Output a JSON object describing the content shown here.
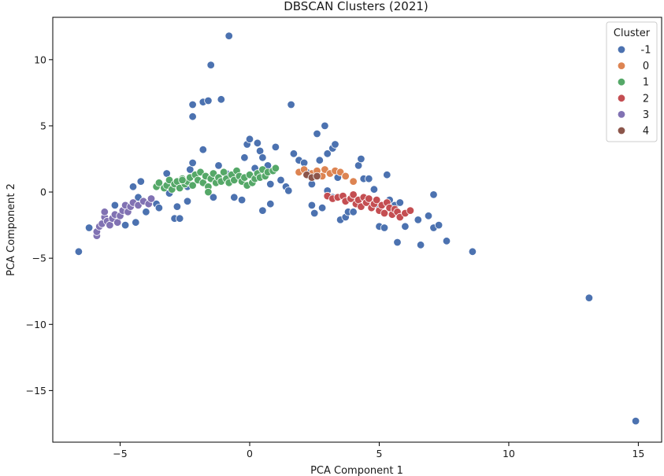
{
  "chart_data": {
    "type": "scatter",
    "title": "DBSCAN Clusters (2021)",
    "xlabel": "PCA Component 1",
    "ylabel": "PCA Component 2",
    "xlim": [
      -7.6,
      15.9
    ],
    "ylim": [
      -18.9,
      13.2
    ],
    "xticks": [
      -5,
      0,
      5,
      10,
      15
    ],
    "yticks": [
      -15,
      -10,
      -5,
      0,
      5,
      10
    ],
    "grid": false,
    "legend": {
      "title": "Cluster",
      "position": "top-right"
    },
    "series": [
      {
        "name": "-1",
        "color": "#4c72b0",
        "points": [
          [
            -6.6,
            -4.5
          ],
          [
            -6.2,
            -2.7
          ],
          [
            -5.2,
            -1.0
          ],
          [
            -4.8,
            -2.5
          ],
          [
            -4.4,
            -2.3
          ],
          [
            -4.5,
            0.4
          ],
          [
            -4.2,
            0.8
          ],
          [
            -4.3,
            -0.4
          ],
          [
            -4.0,
            -1.5
          ],
          [
            -3.6,
            -0.9
          ],
          [
            -3.5,
            -1.2
          ],
          [
            -3.2,
            1.4
          ],
          [
            -3.1,
            -0.1
          ],
          [
            -2.9,
            -2.0
          ],
          [
            -2.7,
            -2.0
          ],
          [
            -2.8,
            -1.1
          ],
          [
            -2.4,
            -0.7
          ],
          [
            -2.4,
            0.4
          ],
          [
            -2.3,
            1.7
          ],
          [
            -2.2,
            2.2
          ],
          [
            -2.2,
            5.7
          ],
          [
            -2.2,
            6.6
          ],
          [
            -1.8,
            6.8
          ],
          [
            -1.6,
            6.9
          ],
          [
            -1.5,
            9.6
          ],
          [
            -1.1,
            7.0
          ],
          [
            -0.8,
            11.8
          ],
          [
            -1.8,
            3.2
          ],
          [
            -1.6,
            0.4
          ],
          [
            -1.4,
            -0.4
          ],
          [
            -1.2,
            2.0
          ],
          [
            -0.9,
            1.4
          ],
          [
            -0.6,
            -0.4
          ],
          [
            -0.3,
            -0.6
          ],
          [
            -0.2,
            2.6
          ],
          [
            -0.1,
            3.6
          ],
          [
            0.0,
            4.0
          ],
          [
            0.2,
            1.8
          ],
          [
            0.3,
            3.7
          ],
          [
            0.4,
            3.1
          ],
          [
            0.5,
            2.6
          ],
          [
            0.7,
            2.0
          ],
          [
            0.8,
            0.6
          ],
          [
            1.0,
            3.4
          ],
          [
            0.5,
            -1.4
          ],
          [
            0.8,
            -0.9
          ],
          [
            1.2,
            0.9
          ],
          [
            1.4,
            0.4
          ],
          [
            1.5,
            0.1
          ],
          [
            1.6,
            6.6
          ],
          [
            1.7,
            2.9
          ],
          [
            1.9,
            2.4
          ],
          [
            2.1,
            2.2
          ],
          [
            2.2,
            1.5
          ],
          [
            2.4,
            0.6
          ],
          [
            2.6,
            4.4
          ],
          [
            2.7,
            2.4
          ],
          [
            2.9,
            5.0
          ],
          [
            3.0,
            2.9
          ],
          [
            3.2,
            3.3
          ],
          [
            3.3,
            3.6
          ],
          [
            2.4,
            -1.0
          ],
          [
            2.5,
            -1.6
          ],
          [
            2.8,
            -1.2
          ],
          [
            3.0,
            0.1
          ],
          [
            3.2,
            -0.4
          ],
          [
            3.4,
            1.1
          ],
          [
            3.5,
            -2.1
          ],
          [
            3.7,
            -1.9
          ],
          [
            3.8,
            -1.5
          ],
          [
            4.0,
            -1.5
          ],
          [
            4.2,
            2.0
          ],
          [
            4.3,
            2.5
          ],
          [
            4.4,
            1.0
          ],
          [
            4.6,
            1.0
          ],
          [
            4.8,
            0.2
          ],
          [
            5.0,
            -1.2
          ],
          [
            5.0,
            -2.6
          ],
          [
            5.2,
            -2.7
          ],
          [
            5.3,
            1.3
          ],
          [
            5.4,
            -0.6
          ],
          [
            5.6,
            -1.0
          ],
          [
            5.8,
            -0.8
          ],
          [
            5.7,
            -3.8
          ],
          [
            6.0,
            -2.6
          ],
          [
            6.2,
            -1.4
          ],
          [
            6.5,
            -2.1
          ],
          [
            6.6,
            -4.0
          ],
          [
            6.9,
            -1.8
          ],
          [
            7.1,
            -2.7
          ],
          [
            7.3,
            -2.5
          ],
          [
            7.6,
            -3.7
          ],
          [
            7.1,
            -0.2
          ],
          [
            8.6,
            -4.5
          ],
          [
            13.1,
            -8.0
          ],
          [
            14.9,
            -17.3
          ]
        ]
      },
      {
        "name": "0",
        "color": "#dd8452",
        "points": [
          [
            1.9,
            1.5
          ],
          [
            2.1,
            1.7
          ],
          [
            2.4,
            1.4
          ],
          [
            2.6,
            1.6
          ],
          [
            2.8,
            1.2
          ],
          [
            2.9,
            1.7
          ],
          [
            3.1,
            1.4
          ],
          [
            3.3,
            1.6
          ],
          [
            3.5,
            1.5
          ],
          [
            3.7,
            1.2
          ],
          [
            4.0,
            0.8
          ]
        ]
      },
      {
        "name": "1",
        "color": "#55a868",
        "points": [
          [
            -3.6,
            0.4
          ],
          [
            -3.5,
            0.7
          ],
          [
            -3.3,
            0.3
          ],
          [
            -3.2,
            0.5
          ],
          [
            -3.1,
            0.9
          ],
          [
            -3.0,
            0.2
          ],
          [
            -2.9,
            0.6
          ],
          [
            -2.8,
            0.8
          ],
          [
            -2.7,
            0.3
          ],
          [
            -2.6,
            1.0
          ],
          [
            -2.5,
            0.6
          ],
          [
            -2.4,
            0.8
          ],
          [
            -2.3,
            1.1
          ],
          [
            -2.2,
            0.5
          ],
          [
            -2.1,
            1.3
          ],
          [
            -2.0,
            0.9
          ],
          [
            -1.9,
            1.5
          ],
          [
            -1.8,
            0.7
          ],
          [
            -1.7,
            1.2
          ],
          [
            -1.6,
            0.4
          ],
          [
            -1.5,
            1.0
          ],
          [
            -1.4,
            1.4
          ],
          [
            -1.3,
            0.7
          ],
          [
            -1.2,
            1.1
          ],
          [
            -1.1,
            0.8
          ],
          [
            -1.0,
            1.5
          ],
          [
            -0.9,
            1.0
          ],
          [
            -0.8,
            0.7
          ],
          [
            -0.7,
            1.3
          ],
          [
            -0.6,
            0.9
          ],
          [
            -0.5,
            1.6
          ],
          [
            -0.4,
            1.2
          ],
          [
            -0.3,
            0.8
          ],
          [
            -0.2,
            1.1
          ],
          [
            -0.1,
            0.5
          ],
          [
            0.0,
            1.3
          ],
          [
            0.1,
            0.7
          ],
          [
            0.2,
            1.0
          ],
          [
            0.3,
            1.4
          ],
          [
            0.4,
            1.1
          ],
          [
            0.5,
            1.7
          ],
          [
            0.6,
            1.2
          ],
          [
            0.7,
            1.5
          ],
          [
            0.9,
            1.6
          ],
          [
            1.0,
            1.8
          ],
          [
            -1.6,
            0.0
          ],
          [
            -2.6,
            0.9
          ]
        ]
      },
      {
        "name": "2",
        "color": "#c44e52",
        "points": [
          [
            3.0,
            -0.3
          ],
          [
            3.2,
            -0.5
          ],
          [
            3.4,
            -0.4
          ],
          [
            3.6,
            -0.3
          ],
          [
            3.7,
            -0.7
          ],
          [
            3.9,
            -0.5
          ],
          [
            4.0,
            -0.2
          ],
          [
            4.1,
            -0.9
          ],
          [
            4.2,
            -0.6
          ],
          [
            4.3,
            -1.1
          ],
          [
            4.4,
            -0.4
          ],
          [
            4.5,
            -0.8
          ],
          [
            4.6,
            -0.5
          ],
          [
            4.7,
            -1.2
          ],
          [
            4.8,
            -0.9
          ],
          [
            4.9,
            -0.6
          ],
          [
            5.0,
            -1.4
          ],
          [
            5.1,
            -1.0
          ],
          [
            5.2,
            -1.6
          ],
          [
            5.3,
            -0.8
          ],
          [
            5.4,
            -1.2
          ],
          [
            5.5,
            -1.7
          ],
          [
            5.6,
            -1.3
          ],
          [
            5.7,
            -1.5
          ],
          [
            5.8,
            -1.9
          ],
          [
            6.0,
            -1.6
          ],
          [
            6.2,
            -1.4
          ]
        ]
      },
      {
        "name": "3",
        "color": "#8172b3",
        "points": [
          [
            -5.9,
            -3.3
          ],
          [
            -5.9,
            -3.0
          ],
          [
            -5.8,
            -2.6
          ],
          [
            -5.7,
            -2.4
          ],
          [
            -5.6,
            -1.9
          ],
          [
            -5.6,
            -1.5
          ],
          [
            -5.5,
            -2.2
          ],
          [
            -5.4,
            -2.5
          ],
          [
            -5.3,
            -2.0
          ],
          [
            -5.2,
            -1.7
          ],
          [
            -5.1,
            -2.3
          ],
          [
            -5.0,
            -1.8
          ],
          [
            -4.9,
            -1.4
          ],
          [
            -4.8,
            -1.0
          ],
          [
            -4.7,
            -1.5
          ],
          [
            -4.6,
            -1.1
          ],
          [
            -4.5,
            -0.8
          ],
          [
            -4.3,
            -1.0
          ],
          [
            -4.1,
            -0.7
          ],
          [
            -3.9,
            -0.9
          ],
          [
            -3.8,
            -0.5
          ]
        ]
      },
      {
        "name": "4",
        "color": "#8c564b",
        "points": [
          [
            2.2,
            1.3
          ],
          [
            2.4,
            1.1
          ],
          [
            2.6,
            1.2
          ]
        ]
      }
    ]
  }
}
